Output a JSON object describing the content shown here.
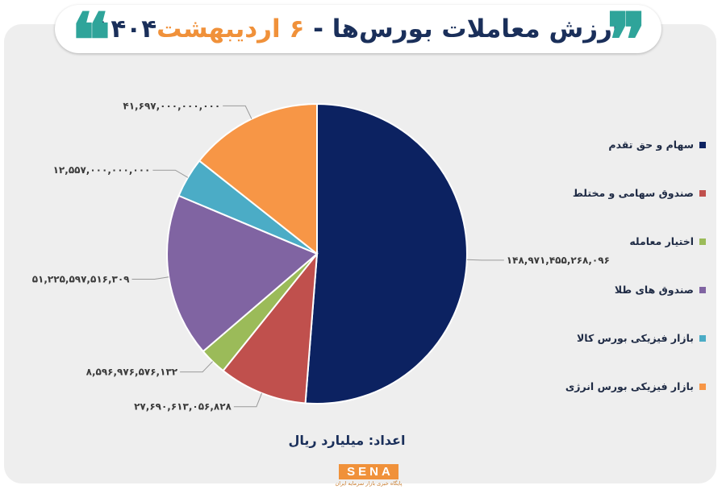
{
  "header": {
    "title_main": "ارزش معاملات بورس‌ها - ",
    "title_date": "۶ اردیبهشت",
    "title_year": "۱۴۰۴",
    "quote_glyph": "❝❞",
    "accent_color": "#2fa49a",
    "highlight_color": "#f0913a"
  },
  "chart_data": {
    "type": "pie",
    "title": "ارزش معاملات بورس‌ها - ۶ اردیبهشت ۱۴۰۴",
    "unit_label": "اعداد: میلیارد ریال",
    "legend_position": "right",
    "slices": [
      {
        "name": "سهام و حق تقدم",
        "value": 148971455268096,
        "label": "۱۴۸,۹۷۱,۴۵۵,۲۶۸,۰۹۶",
        "color": "#0c2261"
      },
      {
        "name": "صندوق سهامی و مختلط",
        "value": 27690613056828,
        "label": "۲۷,۶۹۰,۶۱۳,۰۵۶,۸۲۸",
        "color": "#c0504d"
      },
      {
        "name": "اختیار معامله",
        "value": 8596976576132,
        "label": "۸,۵۹۶,۹۷۶,۵۷۶,۱۳۲",
        "color": "#9bbb59"
      },
      {
        "name": "صندوق های طلا",
        "value": 51225597516309,
        "label": "۵۱,۲۲۵,۵۹۷,۵۱۶,۳۰۹",
        "color": "#8064a2"
      },
      {
        "name": "بازار فیزیکی بورس کالا",
        "value": 12557000000000,
        "label": "۱۲,۵۵۷,۰۰۰,۰۰۰,۰۰۰",
        "color": "#4bacc6"
      },
      {
        "name": "بازار فیزیکی بورس انرژی",
        "value": 41697000000000,
        "label": "۴۱,۶۹۷,۰۰۰,۰۰۰,۰۰۰",
        "color": "#f79646"
      }
    ]
  },
  "logo": {
    "name": "SENA",
    "subtitle": "پایگاه خبری بازار سرمایه ایران",
    "color": "#f0913a"
  }
}
